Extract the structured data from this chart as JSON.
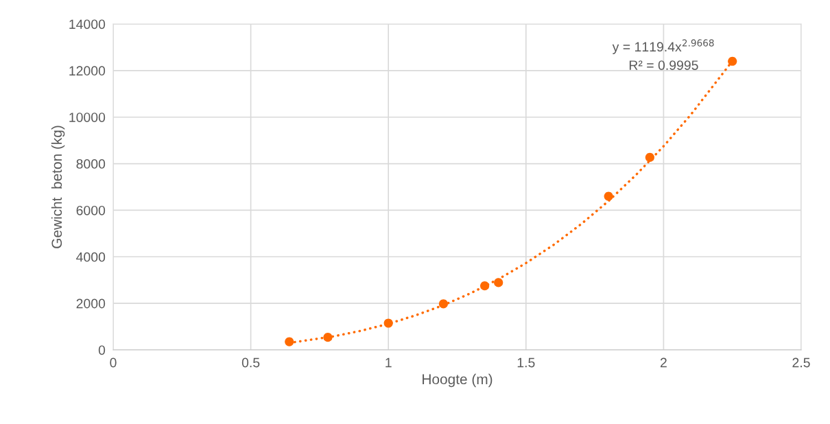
{
  "chart_data": {
    "type": "scatter",
    "xlabel": "Hoogte (m)",
    "ylabel": "Gewicht  beton (kg)",
    "xlim": [
      0,
      2.5
    ],
    "xticks": [
      0,
      0.5,
      1,
      1.5,
      2,
      2.5
    ],
    "ylim": [
      0,
      14000
    ],
    "yticks": [
      0,
      2000,
      4000,
      6000,
      8000,
      10000,
      12000,
      14000
    ],
    "grid": true,
    "legend": false,
    "marker": "circle",
    "annotations": [
      "y = 1119.4x$^{2.9668}$",
      "R² = 0.9995"
    ],
    "series": [
      {
        "color": "#ff6a00",
        "x": [
          0.64,
          0.78,
          1.0,
          1.2,
          1.35,
          1.4,
          1.8,
          1.95,
          2.25
        ],
        "values": [
          350,
          540,
          1150,
          1980,
          2750,
          2890,
          6600,
          8270,
          12400
        ]
      },
      {
        "type": "line",
        "color": "#ff6a00",
        "line_style": "dotted",
        "marker": "none",
        "x": [
          0.64,
          0.8,
          0.9,
          1.0,
          1.1,
          1.2,
          1.3,
          1.4,
          1.5,
          1.6,
          1.7,
          1.8,
          1.9,
          2.0,
          2.1,
          2.25
        ],
        "values": [
          300,
          580,
          820,
          1120,
          1490,
          1920,
          2440,
          3040,
          3730,
          4510,
          5400,
          6400,
          7520,
          8750,
          10120,
          12410
        ]
      }
    ]
  }
}
